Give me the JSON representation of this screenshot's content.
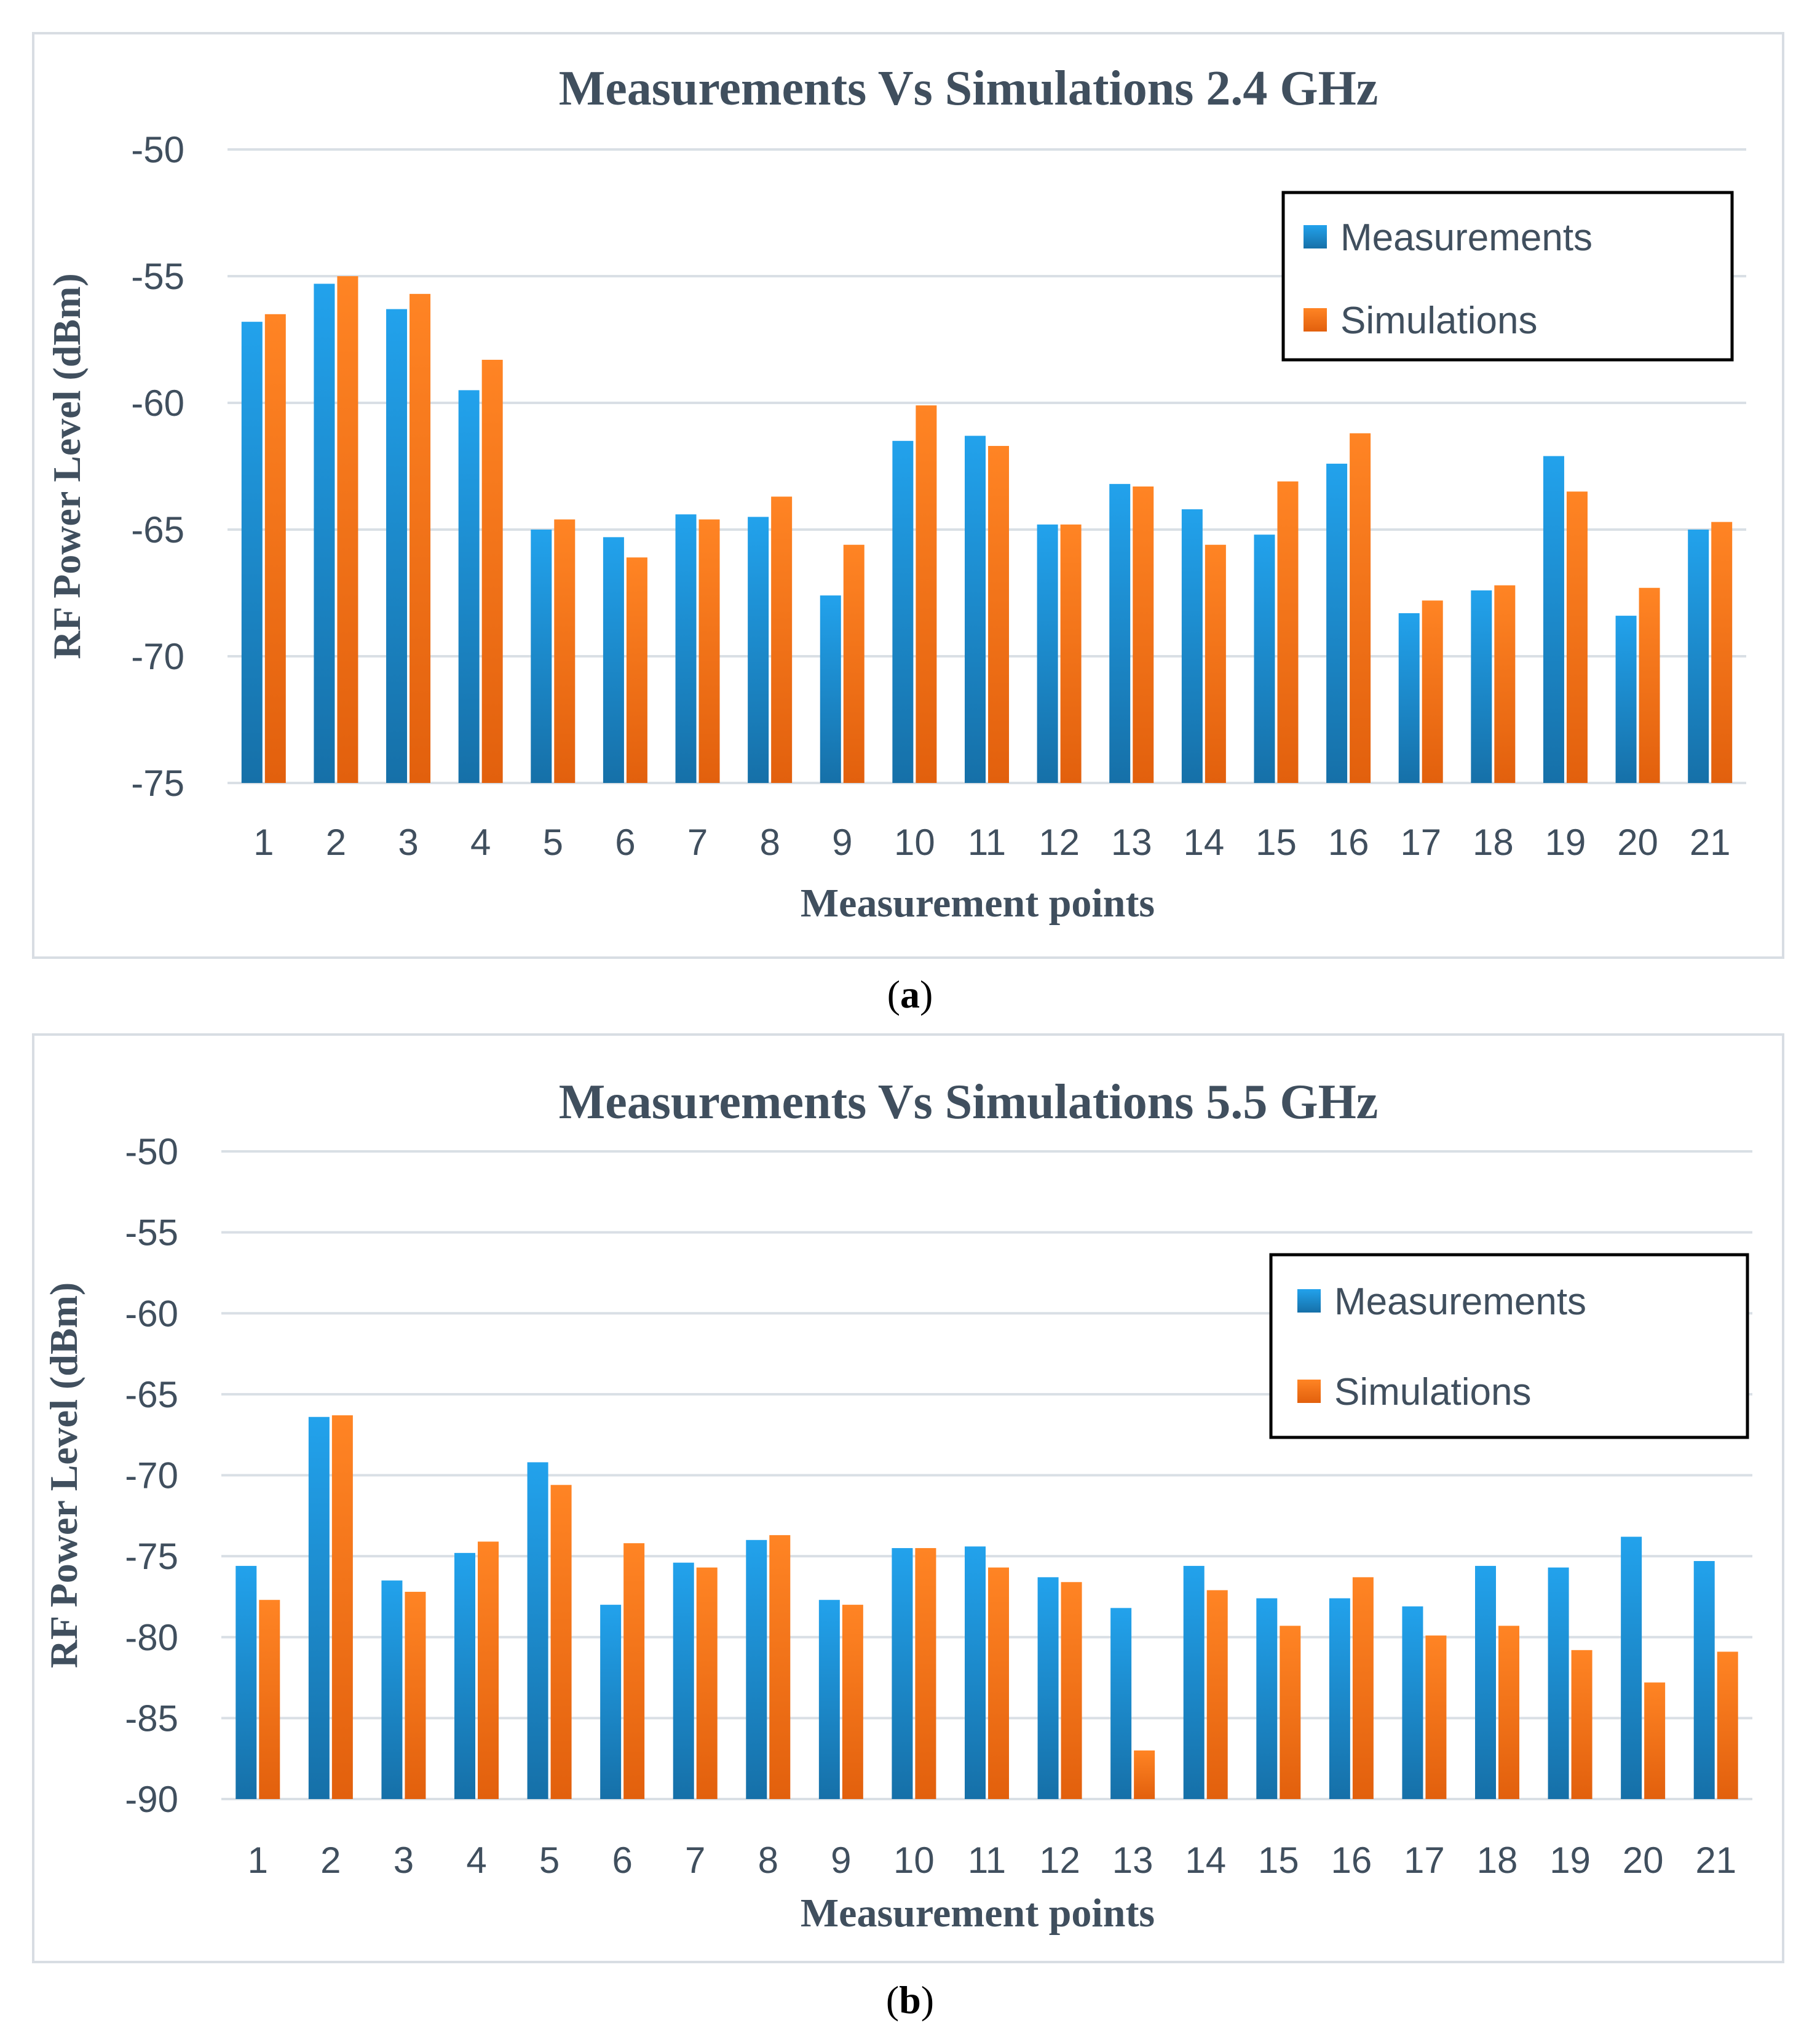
{
  "colors": {
    "measurements": "#1f8fd6",
    "simulations": "#f57619",
    "text": "#404f5e",
    "grid": "#d9dfe5"
  },
  "captions": {
    "a_prefix": "(",
    "a_letter": "a",
    "a_suffix": ")",
    "b_prefix": "(",
    "b_letter": "b",
    "b_suffix": ")"
  },
  "chart_data": [
    {
      "type": "bar",
      "title": "Measurements Vs Simulations 2.4 GHz",
      "xlabel": "Measurement points",
      "ylabel": "RF Power Level (dBm)",
      "ylim": [
        -75,
        -50
      ],
      "yticks": [
        -50,
        -55,
        -60,
        -65,
        -70,
        -75
      ],
      "categories": [
        "1",
        "2",
        "3",
        "4",
        "5",
        "6",
        "7",
        "8",
        "9",
        "10",
        "11",
        "12",
        "13",
        "14",
        "15",
        "16",
        "17",
        "18",
        "19",
        "20",
        "21"
      ],
      "series": [
        {
          "name": "Measurements",
          "values": [
            -56.8,
            -55.3,
            -56.3,
            -59.5,
            -65.0,
            -65.3,
            -64.4,
            -64.5,
            -67.6,
            -61.5,
            -61.3,
            -64.8,
            -63.2,
            -64.2,
            -65.2,
            -62.4,
            -68.3,
            -67.4,
            -62.1,
            -68.4,
            -65.0
          ]
        },
        {
          "name": "Simulations",
          "values": [
            -56.5,
            -55.0,
            -55.7,
            -58.3,
            -64.6,
            -66.1,
            -64.6,
            -63.7,
            -65.6,
            -60.1,
            -61.7,
            -64.8,
            -63.3,
            -65.6,
            -63.1,
            -61.2,
            -67.8,
            -67.2,
            -63.5,
            -67.3,
            -64.7
          ]
        }
      ],
      "legend": "top-right"
    },
    {
      "type": "bar",
      "title": "Measurements Vs Simulations 5.5 GHz",
      "xlabel": "Measurement points",
      "ylabel": "RF Power Level (dBm)",
      "ylim": [
        -90,
        -50
      ],
      "yticks": [
        -50,
        -55,
        -60,
        -65,
        -70,
        -75,
        -80,
        -85,
        -90
      ],
      "categories": [
        "1",
        "2",
        "3",
        "4",
        "5",
        "6",
        "7",
        "8",
        "9",
        "10",
        "11",
        "12",
        "13",
        "14",
        "15",
        "16",
        "17",
        "18",
        "19",
        "20",
        "21"
      ],
      "series": [
        {
          "name": "Measurements",
          "values": [
            -75.6,
            -66.4,
            -76.5,
            -74.8,
            -69.2,
            -78.0,
            -75.4,
            -74.0,
            -77.7,
            -74.5,
            -74.4,
            -76.3,
            -78.2,
            -75.6,
            -77.6,
            -77.6,
            -78.1,
            -75.6,
            -75.7,
            -73.8,
            -75.3
          ]
        },
        {
          "name": "Simulations",
          "values": [
            -77.7,
            -66.3,
            -77.2,
            -74.1,
            -70.6,
            -74.2,
            -75.7,
            -73.7,
            -78.0,
            -74.5,
            -75.7,
            -76.6,
            -87.0,
            -77.1,
            -79.3,
            -76.3,
            -79.9,
            -79.3,
            -80.8,
            -82.8,
            -80.9
          ]
        }
      ],
      "legend": "top-right"
    }
  ]
}
